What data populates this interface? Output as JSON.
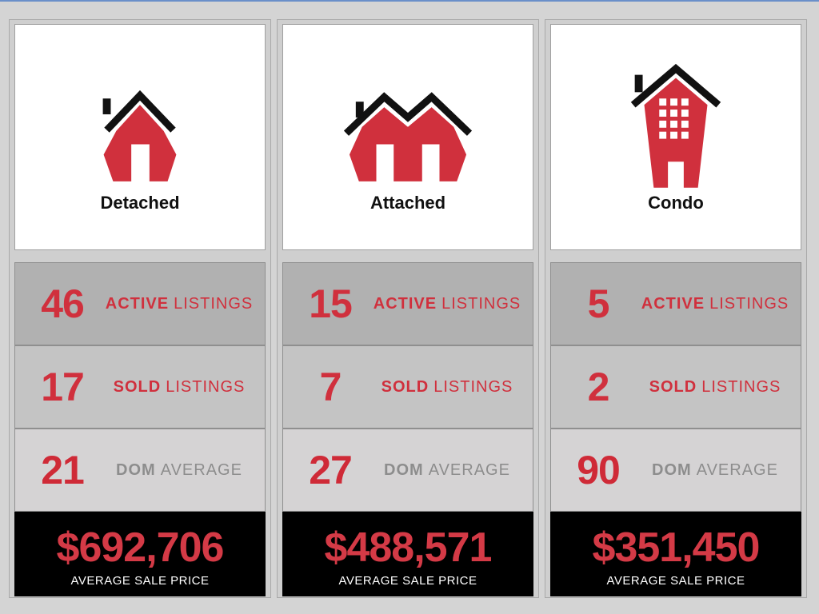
{
  "colors": {
    "accent": "#d0303d",
    "roof": "#111111",
    "muted": "#8d8d8d"
  },
  "panels": [
    {
      "type": "Detached",
      "icon": "detached-house-icon",
      "active": {
        "value": "46",
        "bold": "ACTIVE",
        "rest": "LISTINGS"
      },
      "sold": {
        "value": "17",
        "bold": "SOLD",
        "rest": "LISTINGS"
      },
      "dom": {
        "value": "21",
        "bold": "DOM",
        "rest": "AVERAGE"
      },
      "price": {
        "value": "$692,706",
        "label": "AVERAGE SALE PRICE"
      }
    },
    {
      "type": "Attached",
      "icon": "attached-house-icon",
      "active": {
        "value": "15",
        "bold": "ACTIVE",
        "rest": "LISTINGS"
      },
      "sold": {
        "value": "7",
        "bold": "SOLD",
        "rest": "LISTINGS"
      },
      "dom": {
        "value": "27",
        "bold": "DOM",
        "rest": "AVERAGE"
      },
      "price": {
        "value": "$488,571",
        "label": "AVERAGE SALE PRICE"
      }
    },
    {
      "type": "Condo",
      "icon": "condo-building-icon",
      "active": {
        "value": "5",
        "bold": "ACTIVE",
        "rest": "LISTINGS"
      },
      "sold": {
        "value": "2",
        "bold": "SOLD",
        "rest": "LISTINGS"
      },
      "dom": {
        "value": "90",
        "bold": "DOM",
        "rest": "AVERAGE"
      },
      "price": {
        "value": "$351,450",
        "label": "AVERAGE SALE PRICE"
      }
    }
  ]
}
